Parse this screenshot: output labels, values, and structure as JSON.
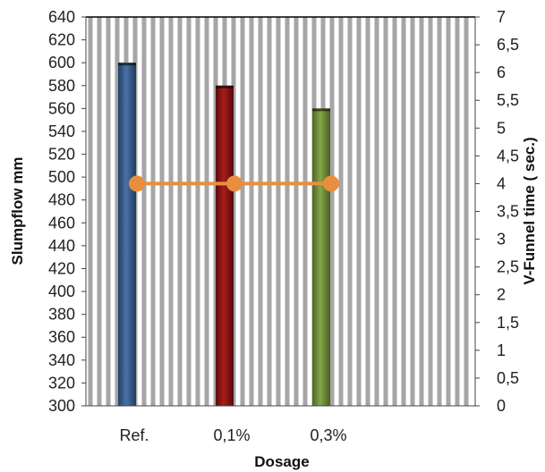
{
  "chart_data": {
    "type": "bar",
    "categories": [
      "Ref.",
      "0,1%",
      "0,3%"
    ],
    "series": [
      {
        "kind": "bar",
        "axis": "left",
        "values": [
          600,
          580,
          560
        ],
        "colors": [
          "#3b5f8f",
          "#8b1414",
          "#6f8a35"
        ]
      },
      {
        "kind": "line",
        "axis": "right",
        "values": [
          4,
          4,
          4
        ],
        "color": "#e98e3e"
      }
    ],
    "xlabel": "Dosage",
    "ylabel": "Slumpflow mm",
    "y2label": "V-Funnel time ( sec.)",
    "ylim": [
      300,
      640
    ],
    "y2lim": [
      0,
      7
    ],
    "yticks": [
      "300",
      "320",
      "340",
      "360",
      "380",
      "400",
      "420",
      "440",
      "460",
      "480",
      "500",
      "520",
      "540",
      "560",
      "580",
      "600",
      "620",
      "640"
    ],
    "y2ticks": [
      "0",
      "0,5",
      "1",
      "1,5",
      "2",
      "2,5",
      "3",
      "3,5",
      "4",
      "4,5",
      "5",
      "5,5",
      "6",
      "6,5",
      "7"
    ],
    "grid": "vertical-dashed",
    "legend": "none"
  }
}
